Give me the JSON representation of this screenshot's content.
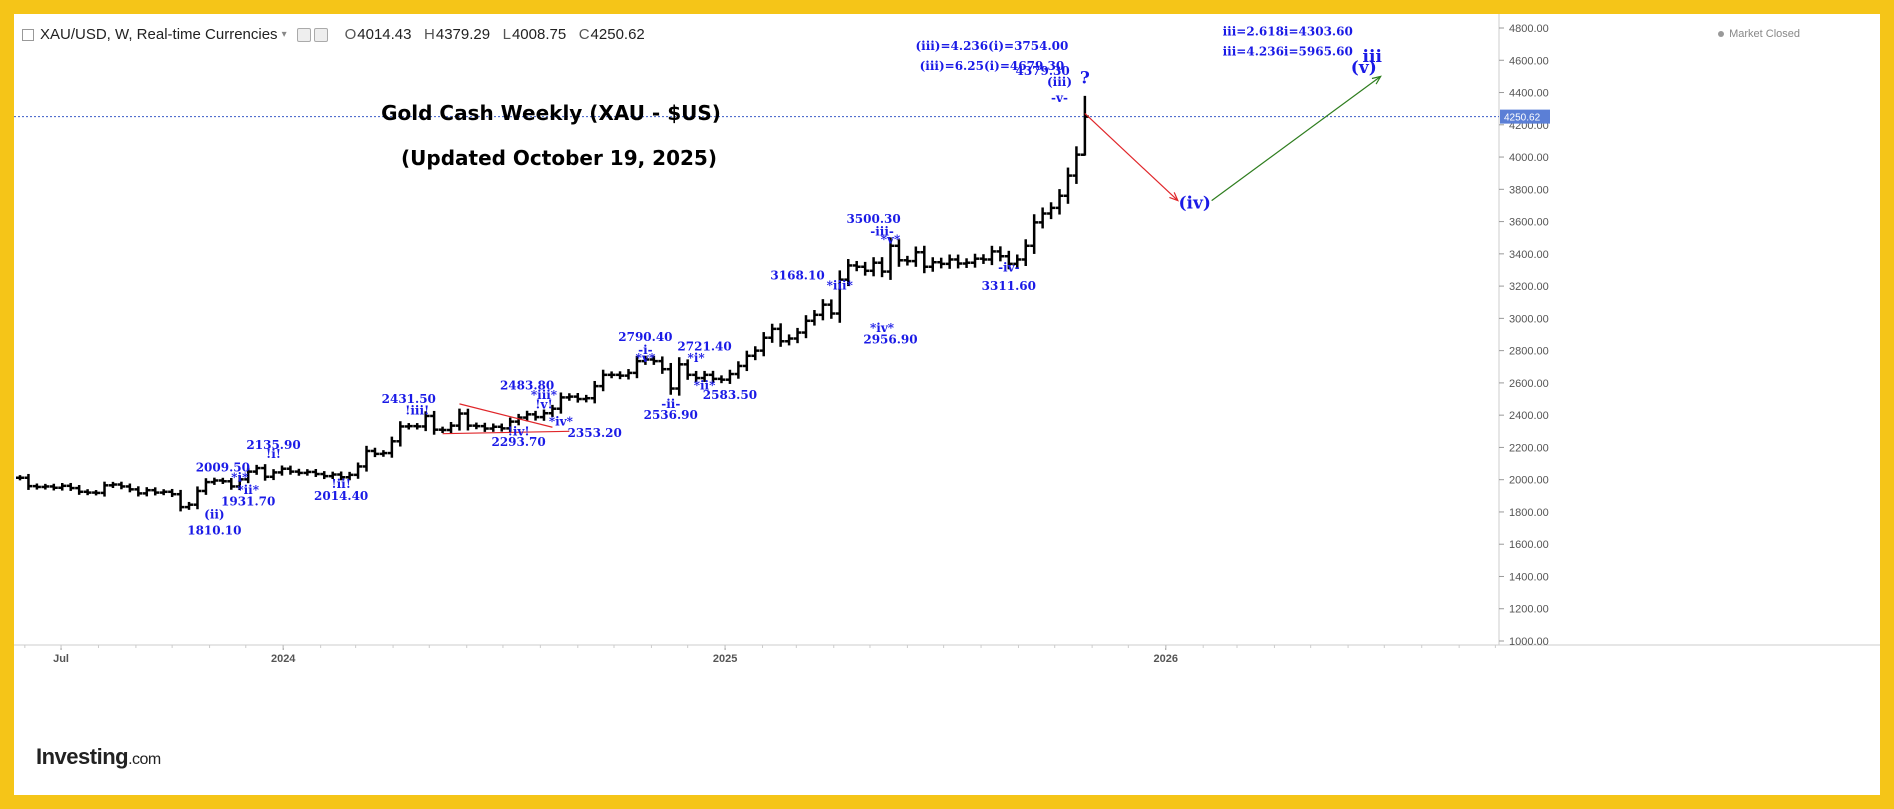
{
  "header": {
    "symbol": "XAU/USD, W, Real-time Currencies",
    "open": "4014.43",
    "high": "4379.29",
    "low": "4008.75",
    "close": "4250.62",
    "open_prefix": "O",
    "high_prefix": "H",
    "low_prefix": "L",
    "close_prefix": "C",
    "status": "Market Closed"
  },
  "brand": {
    "name": "Investing",
    "suffix": ".com"
  },
  "chart_data": {
    "type": "ohlc",
    "title": "Gold Cash Weekly (XAU - $US)",
    "subtitle": "(Updated October 19, 2025)",
    "ylim": [
      950,
      4900
    ],
    "y_ticks": [
      1000,
      1200,
      1400,
      1600,
      1800,
      2000,
      2200,
      2400,
      2600,
      2800,
      3000,
      3200,
      3400,
      3600,
      3800,
      4000,
      4200,
      4400,
      4600,
      4800
    ],
    "y_tick_labels": [
      "1000.00",
      "1200.00",
      "1400.00",
      "1600.00",
      "1800.00",
      "2000.00",
      "2200.00",
      "2400.00",
      "2600.00",
      "2800.00",
      "3000.00",
      "3200.00",
      "3400.00",
      "3600.00",
      "3800.00",
      "4000.00",
      "4200.00",
      "4400.00",
      "4600.00",
      "4800.00"
    ],
    "x_range": [
      "2023-05-28",
      "2026-10-04"
    ],
    "x_ticks": [
      {
        "date": "2023-07-01",
        "label": "Jul"
      },
      {
        "date": "2024-01-01",
        "label": "2024"
      },
      {
        "date": "2025-01-01",
        "label": "2025"
      },
      {
        "date": "2026-01-01",
        "label": "2026"
      }
    ],
    "last_price": 4250.62,
    "last_price_label": "4250.62",
    "series": [
      {
        "start": "2023-05-28",
        "closes": [
          2012,
          1960,
          1955,
          1958,
          1950,
          1962,
          1948,
          1925,
          1920,
          1918,
          1965,
          1970,
          1958,
          1940,
          1915,
          1935,
          1920,
          1925,
          1910,
          1830,
          1845,
          1930,
          1985,
          1995,
          1990,
          1958,
          2002,
          2050,
          2072,
          2018,
          2045,
          2068,
          2050,
          2042,
          2048,
          2035,
          2022,
          2032,
          2015,
          2030,
          2082,
          2178,
          2160,
          2165,
          2238,
          2330,
          2332,
          2330,
          2395,
          2310,
          2308,
          2335,
          2410,
          2335,
          2332,
          2317,
          2328,
          2318,
          2360,
          2385,
          2405,
          2388,
          2412,
          2440,
          2510,
          2515,
          2500,
          2505,
          2580,
          2650,
          2650,
          2645,
          2662,
          2735,
          2745,
          2735,
          2685,
          2565,
          2715,
          2650,
          2630,
          2650,
          2625,
          2620,
          2655,
          2705,
          2768,
          2800,
          2880,
          2935,
          2858,
          2875,
          2912,
          2985,
          3022,
          3085,
          3030,
          3240,
          3328,
          3320,
          3295,
          3345,
          3290,
          3450,
          3360,
          3355,
          3410,
          3320,
          3348,
          3338,
          3365,
          3340,
          3345,
          3370,
          3365,
          3415,
          3385,
          3338,
          3365,
          3450,
          3595,
          3650,
          3685,
          3760,
          3885,
          4015,
          4250.62
        ]
      }
    ],
    "last_bar": {
      "date": "2025-10-19",
      "open": 4014.43,
      "high": 4379.29,
      "low": 4008.75,
      "close": 4250.62
    },
    "annotations": [
      {
        "date": "2023-11-05",
        "price": 1660,
        "text": "1810.10",
        "color": "#1a1ae6"
      },
      {
        "date": "2023-11-05",
        "price": 1760,
        "text": "(ii)",
        "color": "#1a1ae6"
      },
      {
        "date": "2023-11-12",
        "price": 2050,
        "text": "2009.50",
        "color": "#1a1ae6"
      },
      {
        "date": "2023-11-26",
        "price": 1990,
        "text": "*i*",
        "color": "#1a1ae6"
      },
      {
        "date": "2023-12-03",
        "price": 1910,
        "text": "*ii*",
        "color": "#1a1ae6"
      },
      {
        "date": "2023-12-03",
        "price": 1840,
        "text": "1931.70",
        "color": "#1a1ae6"
      },
      {
        "date": "2023-12-24",
        "price": 2190,
        "text": "2135.90",
        "color": "#1a1ae6"
      },
      {
        "date": "2023-12-24",
        "price": 2135,
        "text": "!i!",
        "color": "#1a1ae6"
      },
      {
        "date": "2024-02-18",
        "price": 1950,
        "text": "!ii!",
        "color": "#1a1ae6"
      },
      {
        "date": "2024-02-18",
        "price": 1875,
        "text": "2014.40",
        "color": "#1a1ae6"
      },
      {
        "date": "2024-04-14",
        "price": 2475,
        "text": "2431.50",
        "color": "#1a1ae6"
      },
      {
        "date": "2024-04-21",
        "price": 2405,
        "text": "!iii!",
        "color": "#1a1ae6"
      },
      {
        "date": "2024-07-14",
        "price": 2210,
        "text": "2293.70",
        "color": "#1a1ae6"
      },
      {
        "date": "2024-07-14",
        "price": 2275,
        "text": "!iv!",
        "color": "#1a1ae6"
      },
      {
        "date": "2024-07-21",
        "price": 2560,
        "text": "2483.80",
        "color": "#1a1ae6"
      },
      {
        "date": "2024-08-04",
        "price": 2500,
        "text": "*iii*",
        "color": "#1a1ae6"
      },
      {
        "date": "2024-08-04",
        "price": 2440,
        "text": "!v!",
        "color": "#1a1ae6"
      },
      {
        "date": "2024-08-18",
        "price": 2335,
        "text": "*iv*",
        "color": "#1a1ae6"
      },
      {
        "date": "2024-09-15",
        "price": 2265,
        "text": "2353.20",
        "color": "#1a1ae6"
      },
      {
        "date": "2024-10-27",
        "price": 2860,
        "text": "2790.40",
        "color": "#1a1ae6"
      },
      {
        "date": "2024-10-27",
        "price": 2780,
        "text": "-i-",
        "color": "#1a1ae6"
      },
      {
        "date": "2024-10-27",
        "price": 2730,
        "text": "*v*",
        "color": "#1a1ae6"
      },
      {
        "date": "2024-11-17",
        "price": 2445,
        "text": "-ii-",
        "color": "#1a1ae6"
      },
      {
        "date": "2024-11-17",
        "price": 2375,
        "text": "2536.90",
        "color": "#1a1ae6"
      },
      {
        "date": "2024-12-08",
        "price": 2730,
        "text": "*i*",
        "color": "#1a1ae6"
      },
      {
        "date": "2024-12-15",
        "price": 2800,
        "text": "2721.40",
        "color": "#1a1ae6"
      },
      {
        "date": "2024-12-15",
        "price": 2560,
        "text": "*ii*",
        "color": "#1a1ae6"
      },
      {
        "date": "2025-01-05",
        "price": 2500,
        "text": "2583.50",
        "color": "#1a1ae6"
      },
      {
        "date": "2025-03-02",
        "price": 3240,
        "text": "3168.10",
        "color": "#1a1ae6"
      },
      {
        "date": "2025-04-06",
        "price": 3180,
        "text": "*iii*",
        "color": "#1a1ae6"
      },
      {
        "date": "2025-05-11",
        "price": 2915,
        "text": "*iv*",
        "color": "#1a1ae6"
      },
      {
        "date": "2025-05-18",
        "price": 2845,
        "text": "2956.90",
        "color": "#1a1ae6"
      },
      {
        "date": "2025-05-04",
        "price": 3590,
        "text": "3500.30",
        "color": "#1a1ae6"
      },
      {
        "date": "2025-05-11",
        "price": 3515,
        "text": "-iii-",
        "color": "#1a1ae6"
      },
      {
        "date": "2025-05-18",
        "price": 3465,
        "text": "*v*",
        "color": "#1a1ae6"
      },
      {
        "date": "2025-08-24",
        "price": 3290,
        "text": "-iv-",
        "color": "#1a1ae6"
      },
      {
        "date": "2025-08-24",
        "price": 3175,
        "text": "3311.60",
        "color": "#1a1ae6"
      },
      {
        "date": "2025-08-10",
        "price": 4665,
        "text": "(iii)=4.236(i)=3754.00",
        "color": "#1a1ae6"
      },
      {
        "date": "2025-08-10",
        "price": 4540,
        "text": "(iii)=6.25(i)=4679.30",
        "color": "#1a1ae6"
      },
      {
        "date": "2025-09-21",
        "price": 4510,
        "text": "4379.30",
        "color": "#1a1ae6"
      },
      {
        "date": "2025-10-05",
        "price": 4440,
        "text": "(iii)",
        "color": "#1a1ae6"
      },
      {
        "date": "2025-10-05",
        "price": 4340,
        "text": "-v-",
        "color": "#1a1ae6"
      },
      {
        "date": "2025-10-26",
        "price": 4455,
        "text": "?",
        "color": "#1a1ae6",
        "large": true
      },
      {
        "date": "2026-01-25",
        "price": 3680,
        "text": "(iv)",
        "color": "#1a1ae6",
        "large": true
      },
      {
        "date": "2026-04-12",
        "price": 4755,
        "text": "iii=2.618i=4303.60",
        "color": "#1a1ae6"
      },
      {
        "date": "2026-04-12",
        "price": 4630,
        "text": "iii=4.236i=5965.60",
        "color": "#1a1ae6"
      },
      {
        "date": "2026-06-21",
        "price": 4590,
        "text": "iii",
        "color": "#1a1ae6",
        "large": true
      },
      {
        "date": "2026-06-14",
        "price": 4520,
        "text": "(v)",
        "color": "#1a1ae6",
        "large": true
      }
    ],
    "projections": [
      {
        "from": {
          "date": "2025-10-26",
          "price": 4270
        },
        "to": {
          "date": "2026-01-11",
          "price": 3730
        },
        "color": "#e0262a"
      },
      {
        "from": {
          "date": "2026-02-08",
          "price": 3730
        },
        "to": {
          "date": "2026-06-28",
          "price": 4500
        },
        "color": "#2e7d1e"
      }
    ],
    "triangle": {
      "color": "#e0262a",
      "upper": [
        {
          "date": "2024-05-26",
          "price": 2470
        },
        {
          "date": "2024-08-11",
          "price": 2325
        }
      ],
      "lower": [
        {
          "date": "2024-05-12",
          "price": 2285
        },
        {
          "date": "2024-08-25",
          "price": 2300
        }
      ]
    },
    "colors": {
      "bars": "#000000",
      "annotation": "#1a1ae6",
      "last_price_bg": "#5b7fd6",
      "grid": "#eeeeee"
    }
  }
}
